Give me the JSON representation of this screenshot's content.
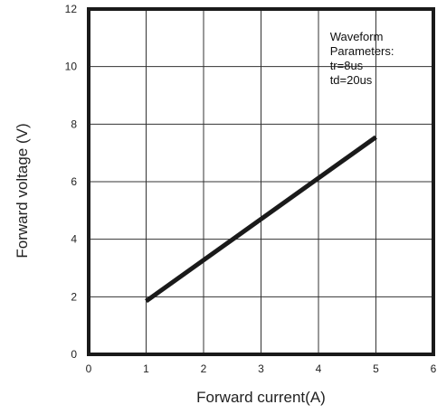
{
  "chart_data": {
    "type": "line",
    "title": "",
    "xlabel": "Forward current(A)",
    "ylabel": "Forward voltage (V)",
    "xlim": [
      0,
      6
    ],
    "ylim": [
      0,
      12
    ],
    "xticks": [
      0,
      1,
      2,
      3,
      4,
      5,
      6
    ],
    "yticks": [
      0,
      2,
      4,
      6,
      8,
      10,
      12
    ],
    "grid": true,
    "legend": "none",
    "series": [
      {
        "x": [
          1,
          5
        ],
        "y": [
          1.85,
          7.55
        ],
        "color": "#1a1a1a"
      }
    ],
    "annotation": {
      "lines": [
        "Waveform",
        "Parameters:",
        "tr=8us",
        "td=20us"
      ],
      "x": 4.2,
      "y": 10.9
    }
  }
}
